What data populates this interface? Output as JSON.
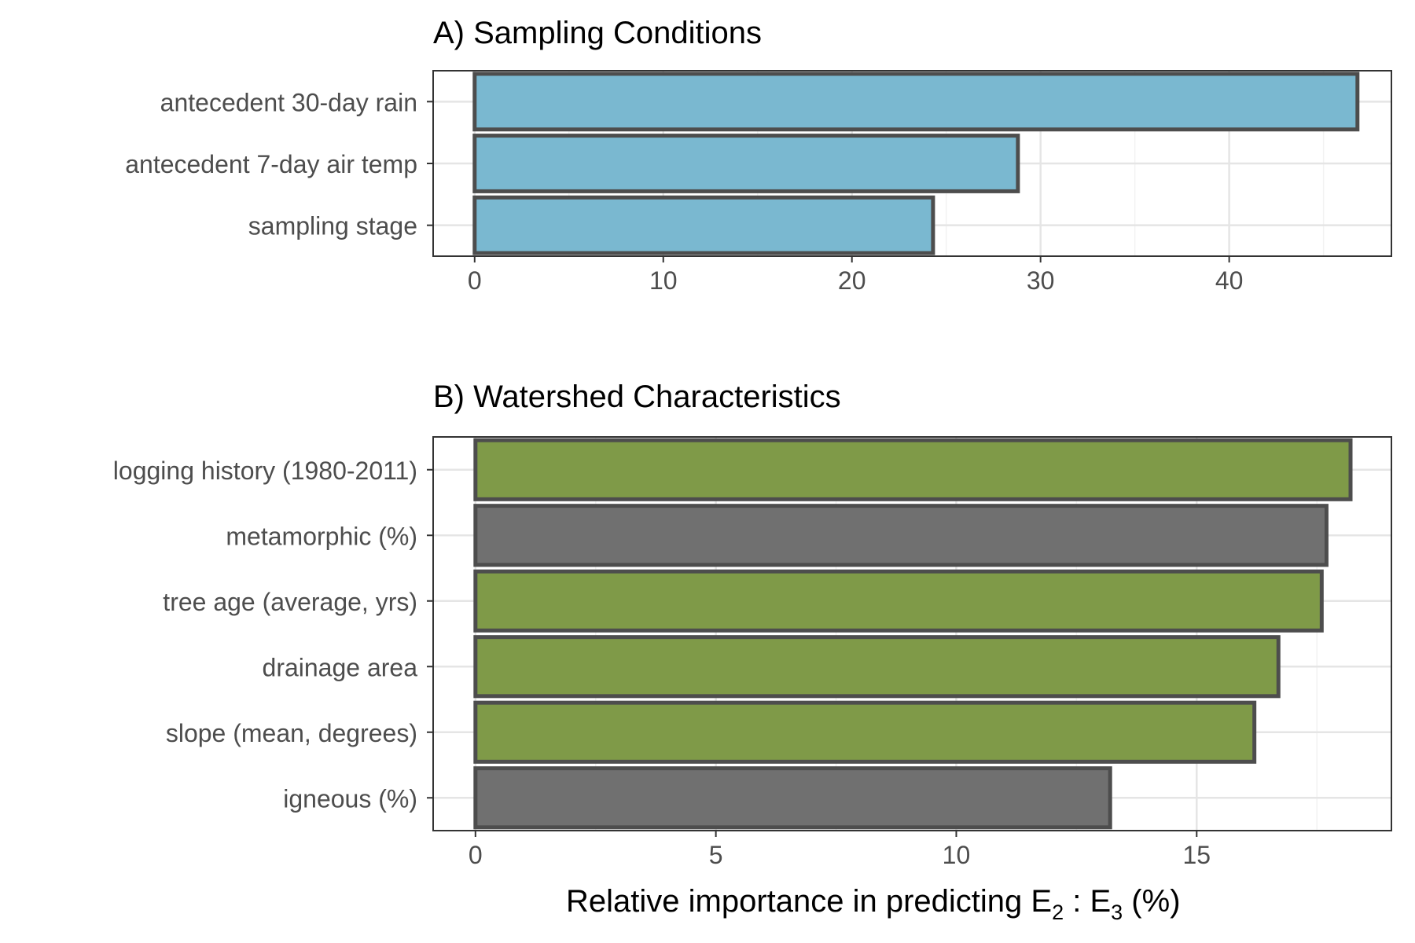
{
  "chart_data": [
    {
      "type": "bar",
      "orientation": "horizontal",
      "title": "A) Sampling Conditions",
      "categories": [
        "antecedent 30-day rain",
        "antecedent 7-day air temp",
        "sampling stage"
      ],
      "values": [
        46.8,
        28.8,
        24.3
      ],
      "bar_colors": [
        "#7ab8d0",
        "#7ab8d0",
        "#7ab8d0"
      ],
      "xlim": [
        -2.2,
        48.6
      ],
      "xticks": [
        0,
        10,
        20,
        30,
        40
      ],
      "xtick_labels": [
        "0",
        "10",
        "20",
        "30",
        "40"
      ],
      "grid": true
    },
    {
      "type": "bar",
      "orientation": "horizontal",
      "title": "B) Watershed Characteristics",
      "categories": [
        "logging history (1980-2011)",
        "metamorphic (%)",
        "tree age (average, yrs)",
        "drainage area",
        "slope (mean, degrees)",
        "igneous (%)"
      ],
      "values": [
        18.2,
        17.7,
        17.6,
        16.7,
        16.2,
        13.2
      ],
      "bar_colors": [
        "#7f9a48",
        "#707070",
        "#7f9a48",
        "#7f9a48",
        "#7f9a48",
        "#707070"
      ],
      "xlim": [
        -0.88,
        19.05
      ],
      "xticks": [
        0,
        5,
        10,
        15
      ],
      "xtick_labels": [
        "0",
        "5",
        "10",
        "15"
      ],
      "grid": true,
      "xlabel_main": "Relative importance in predicting E",
      "xlabel_sub1": "2",
      "xlabel_sep": " : E",
      "xlabel_sub2": "3",
      "xlabel_tail": " (%)"
    }
  ]
}
